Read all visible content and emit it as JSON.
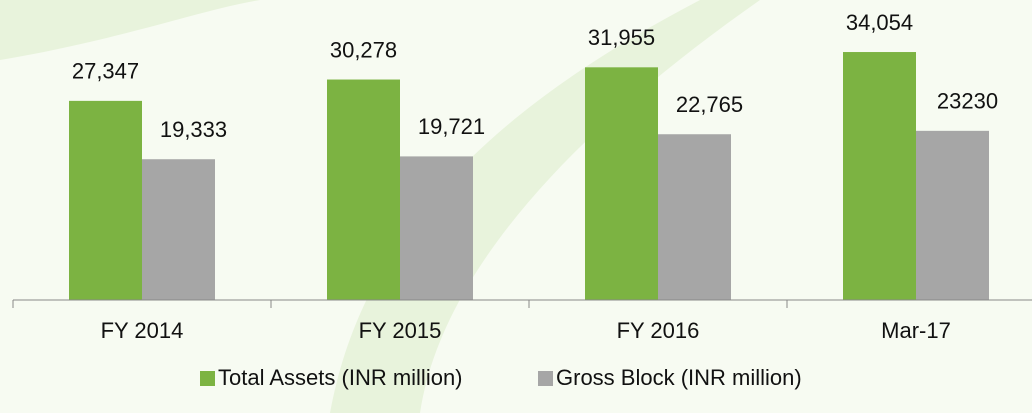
{
  "chart_data": {
    "type": "bar",
    "categories": [
      "FY 2014",
      "FY 2015",
      "FY 2016",
      "Mar-17"
    ],
    "series": [
      {
        "name": "Total Assets (INR million)",
        "color": "#7cb342",
        "values": [
          27347,
          30278,
          31955,
          34054
        ],
        "value_labels": [
          "27,347",
          "30,278",
          "31,955",
          "34,054"
        ]
      },
      {
        "name": "Gross Block (INR million)",
        "color": "#a6a6a6",
        "values": [
          19333,
          19721,
          22765,
          23230
        ],
        "value_labels": [
          "19,333",
          "19,721",
          "22,765",
          "23230"
        ]
      }
    ],
    "ylim": [
      0,
      41200
    ],
    "legend": "bottom"
  }
}
